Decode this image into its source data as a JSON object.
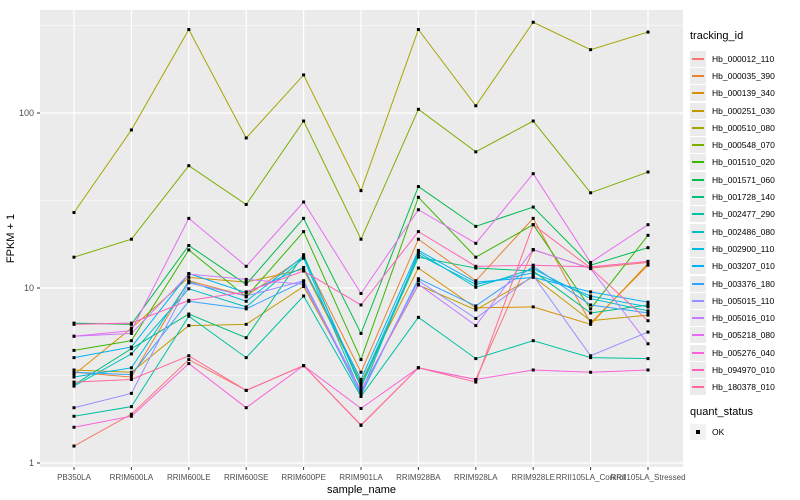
{
  "chart_data": {
    "type": "line",
    "xlabel": "sample_name",
    "ylabel": "FPKM + 1",
    "y_scale": "log10",
    "y_tick_labels": [
      "1",
      "10",
      "100"
    ],
    "y_ticks": [
      1,
      10,
      100
    ],
    "y_minor_ticks": [
      3.162,
      31.62,
      316.2
    ],
    "ylim": [
      0.95,
      400
    ],
    "legend_title": "tracking_id",
    "legend_position": "right",
    "grid": "on",
    "panel_bg": "#ebebeb",
    "grid_color": "#ffffff",
    "axis_text_color": "#4d4d4d",
    "point_shape": "square",
    "point_color": "#000000",
    "categories": [
      "PB350LA",
      "RRIM600LA",
      "RRIM600LE",
      "RRIM600SE",
      "RRIM600PE",
      "RRIM901LA",
      "RRIM928BA",
      "RRIM928LA",
      "RRIM928LE",
      "RRII105LA_Control",
      "RRII105LA_Stressed"
    ],
    "series": [
      {
        "name": "Hb_000012_110",
        "color": "#F8766D",
        "values": [
          1.25,
          1.9,
          3.9,
          2.6,
          3.6,
          1.65,
          3.5,
          3.0,
          16.5,
          13.0,
          14.0
        ]
      },
      {
        "name": "Hb_000035_390",
        "color": "#EA8331",
        "values": [
          3.3,
          3.1,
          11.0,
          9.0,
          15.0,
          3.3,
          19.0,
          11.0,
          25.0,
          6.3,
          13.5
        ]
      },
      {
        "name": "Hb_000139_340",
        "color": "#D89000",
        "values": [
          3.2,
          5.9,
          11.5,
          10.8,
          12.8,
          2.9,
          13.0,
          7.7,
          7.8,
          6.2,
          13.8
        ]
      },
      {
        "name": "Hb_000251_030",
        "color": "#C09B00",
        "values": [
          3.4,
          3.3,
          6.1,
          6.2,
          10.2,
          2.6,
          10.4,
          7.5,
          11.6,
          6.5,
          7.0
        ]
      },
      {
        "name": "Hb_000510_080",
        "color": "#A3A500",
        "values": [
          27,
          80,
          300,
          72,
          165,
          36,
          300,
          110,
          330,
          230,
          290
        ]
      },
      {
        "name": "Hb_000548_070",
        "color": "#7CAE00",
        "values": [
          15,
          19,
          50,
          30,
          90,
          19,
          105,
          60,
          90,
          35,
          46
        ]
      },
      {
        "name": "Hb_001510_020",
        "color": "#39B600",
        "values": [
          4.4,
          5.0,
          16.5,
          8.9,
          21,
          3.9,
          33,
          15,
          23,
          7.6,
          20
        ]
      },
      {
        "name": "Hb_001571_060",
        "color": "#00BB4E",
        "values": [
          6.3,
          6.2,
          17.5,
          10.5,
          25,
          5.5,
          38,
          22.5,
          29,
          13.5,
          17
        ]
      },
      {
        "name": "Hb_001728_140",
        "color": "#00BF7D",
        "values": [
          2.8,
          4.5,
          7.1,
          5.2,
          15.5,
          2.7,
          15.0,
          13.0,
          12.5,
          7.2,
          8.0
        ]
      },
      {
        "name": "Hb_002477_290",
        "color": "#00C1A3",
        "values": [
          1.85,
          2.1,
          6.9,
          4.0,
          9.0,
          2.4,
          6.8,
          3.95,
          5.0,
          4.0,
          3.95
        ]
      },
      {
        "name": "Hb_002486_080",
        "color": "#00BFC4",
        "values": [
          2.75,
          4.2,
          9.9,
          7.8,
          14.8,
          2.5,
          16.0,
          10.1,
          12.9,
          8.7,
          7.4
        ]
      },
      {
        "name": "Hb_002900_110",
        "color": "#00BAE0",
        "values": [
          3.1,
          3.5,
          10.9,
          8.4,
          15.2,
          2.8,
          15.5,
          10.5,
          12.2,
          9.0,
          7.8
        ]
      },
      {
        "name": "Hb_003207_010",
        "color": "#00B0F6",
        "values": [
          4.0,
          4.6,
          12.1,
          9.4,
          13.1,
          3.0,
          16.4,
          10.8,
          11.5,
          9.5,
          8.3
        ]
      },
      {
        "name": "Hb_003376_180",
        "color": "#35A2FF",
        "values": [
          3.3,
          3.2,
          8.4,
          7.6,
          10.9,
          2.45,
          11.3,
          7.9,
          13.3,
          8.0,
          7.2
        ]
      },
      {
        "name": "Hb_005015_110",
        "color": "#9590FF",
        "values": [
          2.07,
          2.5,
          10.7,
          9.0,
          11.0,
          2.55,
          11.0,
          6.7,
          11.8,
          4.1,
          5.6
        ]
      },
      {
        "name": "Hb_005016_010",
        "color": "#C77CFF",
        "values": [
          5.3,
          5.5,
          12.0,
          11.2,
          10.5,
          2.6,
          10.5,
          6.1,
          16.6,
          12.9,
          4.8
        ]
      },
      {
        "name": "Hb_005218_080",
        "color": "#E76BF3",
        "values": [
          5.3,
          5.7,
          25,
          13.3,
          31,
          9.3,
          28,
          18,
          45,
          14,
          23
        ]
      },
      {
        "name": "Hb_005276_040",
        "color": "#FA62DB",
        "values": [
          1.6,
          1.85,
          3.7,
          2.07,
          3.6,
          2.05,
          3.5,
          3.0,
          3.4,
          3.3,
          3.4
        ]
      },
      {
        "name": "Hb_094970_010",
        "color": "#FF62BC",
        "values": [
          6.2,
          6.3,
          8.5,
          9.5,
          12.5,
          8.0,
          21,
          13.3,
          13.5,
          13.2,
          14.2
        ]
      },
      {
        "name": "Hb_180378_010",
        "color": "#FF6A98",
        "values": [
          2.9,
          3.0,
          4.1,
          2.6,
          3.6,
          1.64,
          3.5,
          2.9,
          23,
          13.0,
          6.5
        ]
      }
    ],
    "quant_legend": {
      "title": "quant_status",
      "items": [
        {
          "label": "OK"
        }
      ]
    }
  }
}
